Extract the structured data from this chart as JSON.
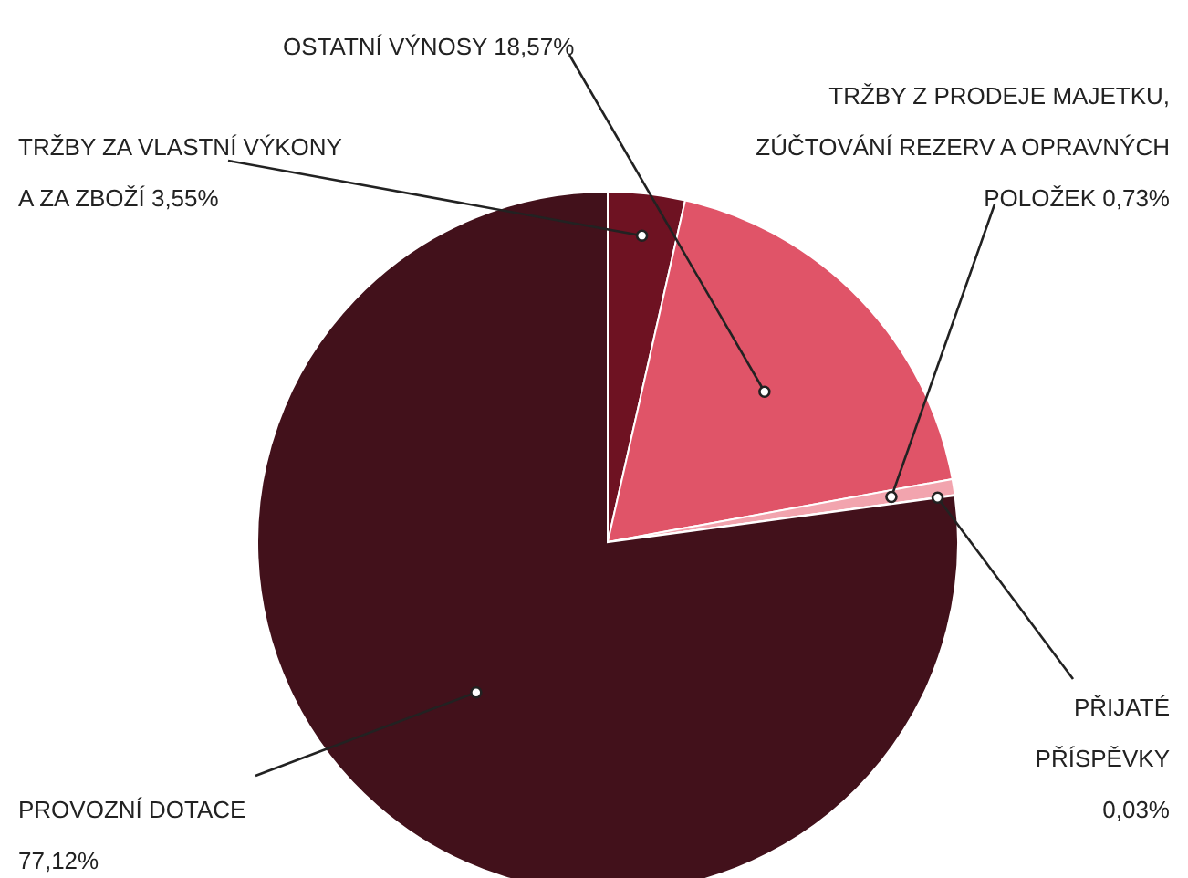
{
  "chart_data": {
    "type": "pie",
    "categories": [
      "TRŽBY ZA VLASTNÍ VÝKONY A ZA ZBOŽÍ",
      "OSTATNÍ VÝNOSY",
      "TRŽBY Z PRODEJE MAJETKU, ZÚČTOVÁNÍ REZERV A OPRAVNÝCH POLOŽEK",
      "PŘIJATÉ PŘÍSPĚVKY",
      "PROVOZNÍ DOTACE"
    ],
    "values": [
      3.55,
      18.57,
      0.73,
      0.03,
      77.12
    ],
    "value_labels": [
      "3,55%",
      "18,57%",
      "0,73%",
      "0,03%",
      "77,12%"
    ],
    "colors": [
      "#6e1222",
      "#e05468",
      "#f2a4ae",
      "#f7c8ce",
      "#42111b"
    ]
  }
}
